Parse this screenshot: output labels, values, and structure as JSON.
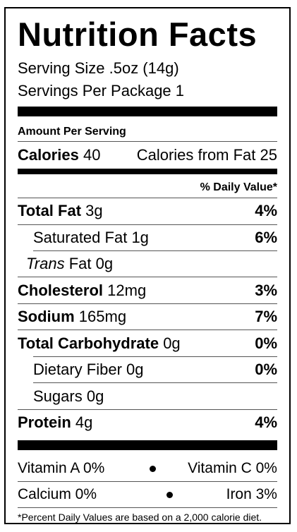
{
  "title": "Nutrition Facts",
  "serving_size": "Serving Size .5oz (14g)",
  "servings_per_package": "Servings Per Package 1",
  "amount_per_serving": "Amount Per Serving",
  "calories": {
    "label": "Calories",
    "value": "40",
    "from_fat": "Calories from Fat 25"
  },
  "daily_value_header": "% Daily Value*",
  "nutrients": [
    {
      "name": "Total Fat",
      "amount": "3g",
      "dv": "4%"
    },
    {
      "name": "Saturated Fat",
      "amount": "1g",
      "dv": "6%"
    },
    {
      "name": "Trans",
      "name_rest": "Fat",
      "amount": "0g"
    },
    {
      "name": "Cholesterol",
      "amount": "12mg",
      "dv": "3%"
    },
    {
      "name": "Sodium",
      "amount": "165mg",
      "dv": "7%"
    },
    {
      "name": "Total Carbohydrate",
      "amount": "0g",
      "dv": "0%"
    },
    {
      "name": "Dietary Fiber",
      "amount": "0g",
      "dv": "0%"
    },
    {
      "name": "Sugars",
      "amount": "0g"
    },
    {
      "name": "Protein",
      "amount": "4g",
      "dv": "4%"
    }
  ],
  "vitamins": [
    {
      "left": "Vitamin A 0%",
      "right": "Vitamin C 0%"
    },
    {
      "left": "Calcium 0%",
      "right": "Iron 3%"
    }
  ],
  "footnote": "*Percent Daily Values are based on a 2,000 calorie diet."
}
